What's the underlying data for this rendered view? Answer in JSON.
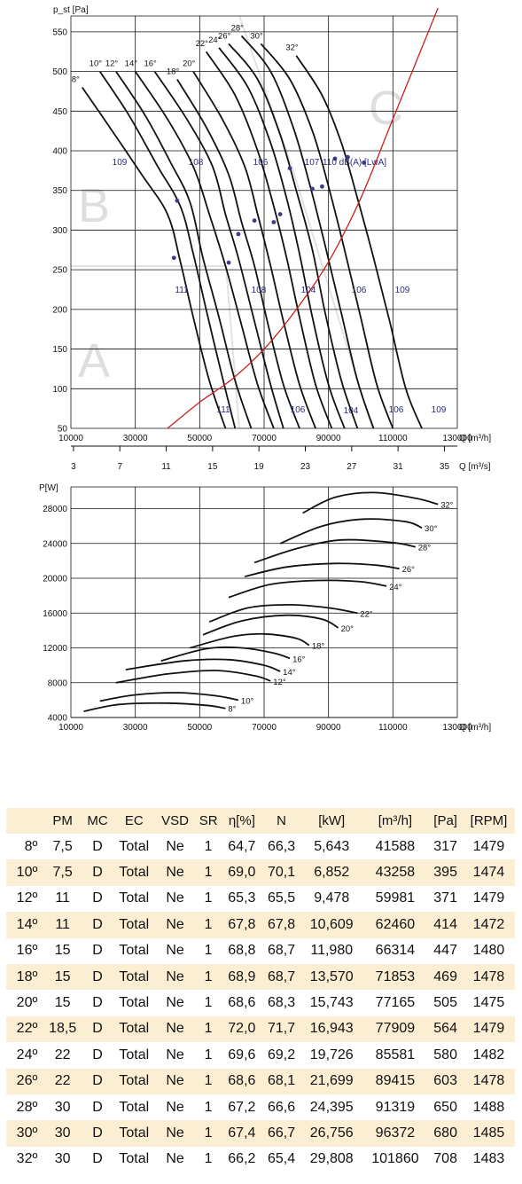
{
  "chart_data": [
    {
      "type": "line",
      "title": "",
      "ylabel": "p_st [Pa]",
      "xlabel": "Q [m³/h]",
      "xlabel2": "Q [m³/s]",
      "xlim": [
        10000,
        130000
      ],
      "ylim": [
        50,
        570
      ],
      "xticks": [
        "10000",
        "30000",
        "50000",
        "70000",
        "90000",
        "110000",
        "130000"
      ],
      "yticks": [
        "50",
        "100",
        "150",
        "200",
        "250",
        "300",
        "350",
        "400",
        "450",
        "500",
        "550"
      ],
      "x2ticks": [
        "3",
        "7",
        "11",
        "15",
        "19",
        "23",
        "27",
        "31",
        "35"
      ],
      "zones": [
        "A",
        "B",
        "C"
      ],
      "series": [
        {
          "name": "8°",
          "x": [
            13500,
            22000,
            32000,
            40000,
            44000,
            48000,
            53000,
            58000
          ],
          "y": [
            480,
            430,
            370,
            320,
            260,
            190,
            110,
            50
          ]
        },
        {
          "name": "10°",
          "x": [
            19000,
            28000,
            37000,
            44000,
            48000,
            52000,
            57000,
            61000
          ],
          "y": [
            500,
            445,
            380,
            330,
            270,
            200,
            115,
            50
          ]
        },
        {
          "name": "12°",
          "x": [
            24000,
            33000,
            41000,
            47000,
            51000,
            56000,
            61000,
            66000
          ],
          "y": [
            500,
            445,
            385,
            335,
            265,
            190,
            110,
            50
          ]
        },
        {
          "name": "14°",
          "x": [
            30000,
            40000,
            48000,
            53000,
            58000,
            63000,
            68000,
            73000
          ],
          "y": [
            500,
            440,
            380,
            320,
            255,
            180,
            105,
            50
          ]
        },
        {
          "name": "16°",
          "x": [
            36000,
            46000,
            54000,
            58000,
            62000,
            67000,
            72000,
            76000
          ],
          "y": [
            500,
            440,
            380,
            320,
            265,
            185,
            105,
            50
          ]
        },
        {
          "name": "18°",
          "x": [
            43000,
            52000,
            59000,
            63000,
            67000,
            71000,
            76000,
            81000
          ],
          "y": [
            490,
            430,
            370,
            310,
            255,
            185,
            105,
            50
          ]
        },
        {
          "name": "20°",
          "x": [
            48000,
            57000,
            64000,
            68000,
            72000,
            76000,
            81000,
            86000
          ],
          "y": [
            500,
            440,
            380,
            320,
            255,
            185,
            105,
            50
          ]
        },
        {
          "name": "22°",
          "x": [
            52000,
            61000,
            68000,
            73000,
            77000,
            81000,
            86000,
            91000
          ],
          "y": [
            525,
            470,
            400,
            330,
            265,
            190,
            105,
            50
          ]
        },
        {
          "name": "24°",
          "x": [
            56000,
            65000,
            72000,
            77000,
            81000,
            85000,
            90000,
            95000
          ],
          "y": [
            530,
            480,
            410,
            340,
            270,
            190,
            105,
            50
          ]
        },
        {
          "name": "26°",
          "x": [
            59000,
            68000,
            75000,
            80000,
            85000,
            89000,
            94000,
            99000
          ],
          "y": [
            535,
            490,
            420,
            350,
            275,
            195,
            110,
            50
          ]
        },
        {
          "name": "28°",
          "x": [
            63000,
            72000,
            79000,
            84000,
            89000,
            94000,
            99000,
            104000
          ],
          "y": [
            545,
            500,
            430,
            360,
            280,
            195,
            110,
            50
          ]
        },
        {
          "name": "30°",
          "x": [
            69000,
            78000,
            85000,
            90000,
            95000,
            100000,
            105000,
            110000
          ],
          "y": [
            535,
            490,
            425,
            355,
            275,
            190,
            105,
            50
          ]
        },
        {
          "name": "32°",
          "x": [
            80000,
            88000,
            94000,
            99000,
            104000,
            109000,
            114000,
            119000
          ],
          "y": [
            520,
            470,
            410,
            340,
            265,
            185,
            100,
            50
          ]
        },
        {
          "name": "System",
          "x": [
            40000,
            50000,
            60000,
            70000,
            80000,
            90000,
            100000,
            110000,
            124000
          ],
          "y": [
            50,
            83,
            112,
            150,
            200,
            260,
            340,
            440,
            580
          ]
        }
      ],
      "annotations_db_upper": [
        "109",
        "108",
        "106",
        "107",
        "110 dB(A) [LwA]"
      ],
      "annotations_db_mid": [
        "111",
        "108",
        "104",
        "106",
        "109"
      ],
      "annotations_db_low": [
        "111",
        "106",
        "104",
        "106",
        "109"
      ],
      "operating_points": [
        {
          "x": 42000,
          "y": 265
        },
        {
          "x": 43000,
          "y": 337
        },
        {
          "x": 59000,
          "y": 259
        },
        {
          "x": 62000,
          "y": 295
        },
        {
          "x": 67000,
          "y": 312
        },
        {
          "x": 73000,
          "y": 310
        },
        {
          "x": 75000,
          "y": 320
        },
        {
          "x": 78000,
          "y": 378
        },
        {
          "x": 85000,
          "y": 352
        },
        {
          "x": 88000,
          "y": 355
        },
        {
          "x": 92000,
          "y": 390
        },
        {
          "x": 96000,
          "y": 392
        },
        {
          "x": 101000,
          "y": 385
        }
      ],
      "curve_labels": [
        "8°",
        "10°",
        "12°",
        "14°",
        "16°",
        "18°",
        "20°",
        "22°",
        "24°",
        "26°",
        "28°",
        "30°",
        "32°"
      ],
      "colors": {
        "curve": "#111111",
        "system": "#c8201c",
        "grid": "#111111",
        "point": "#3b3b8a",
        "db": "#2a2a7a"
      }
    },
    {
      "type": "line",
      "title": "",
      "ylabel": "P[W]",
      "xlabel": "Q [m³/h]",
      "xlim": [
        10000,
        130000
      ],
      "ylim": [
        4000,
        30500
      ],
      "xticks": [
        "10000",
        "30000",
        "50000",
        "70000",
        "90000",
        "110000",
        "130000"
      ],
      "yticks": [
        "4000",
        "8000",
        "12000",
        "16000",
        "20000",
        "24000",
        "28000"
      ],
      "series": [
        {
          "name": "8°",
          "x": [
            14000,
            25000,
            40000,
            52000,
            58000
          ],
          "y": [
            4700,
            5500,
            5650,
            5400,
            5050
          ]
        },
        {
          "name": "10°",
          "x": [
            19000,
            30000,
            43000,
            55000,
            62000
          ],
          "y": [
            5900,
            6600,
            6850,
            6500,
            6000
          ]
        },
        {
          "name": "12°",
          "x": [
            24000,
            40000,
            55000,
            67000,
            72000
          ],
          "y": [
            8000,
            9000,
            9400,
            8800,
            8200
          ]
        },
        {
          "name": "14°",
          "x": [
            27000,
            45000,
            59000,
            70000,
            75000
          ],
          "y": [
            9500,
            10500,
            10650,
            10000,
            9300
          ]
        },
        {
          "name": "16°",
          "x": [
            38000,
            52000,
            63000,
            73000,
            78000
          ],
          "y": [
            10500,
            11900,
            12000,
            11400,
            10800
          ]
        },
        {
          "name": "18°",
          "x": [
            47000,
            60000,
            70000,
            80000,
            84000
          ],
          "y": [
            12000,
            13300,
            13600,
            13100,
            12300
          ]
        },
        {
          "name": "20°",
          "x": [
            51000,
            63000,
            77000,
            88000,
            93000
          ],
          "y": [
            13500,
            15100,
            15750,
            15300,
            14300
          ]
        },
        {
          "name": "22°",
          "x": [
            53000,
            65000,
            78000,
            90000,
            99000
          ],
          "y": [
            15000,
            16600,
            16950,
            16600,
            16000
          ]
        },
        {
          "name": "24°",
          "x": [
            59000,
            72000,
            87000,
            100000,
            108000
          ],
          "y": [
            17800,
            19300,
            19750,
            19600,
            19100
          ]
        },
        {
          "name": "26°",
          "x": [
            64000,
            77000,
            92000,
            105000,
            112000
          ],
          "y": [
            20200,
            21300,
            21700,
            21500,
            21100
          ]
        },
        {
          "name": "28°",
          "x": [
            67000,
            80000,
            94000,
            110000,
            117000
          ],
          "y": [
            21800,
            23400,
            24400,
            24100,
            23600
          ]
        },
        {
          "name": "30°",
          "x": [
            75000,
            88000,
            101000,
            114000,
            119000
          ],
          "y": [
            24000,
            26000,
            26800,
            26500,
            25800
          ]
        },
        {
          "name": "32°",
          "x": [
            82000,
            92000,
            104000,
            117000,
            124000
          ],
          "y": [
            27500,
            29300,
            29850,
            29200,
            28500
          ]
        }
      ],
      "colors": {
        "curve": "#111111",
        "grid": "#111111"
      }
    }
  ],
  "table": {
    "headers": [
      "",
      "PM",
      "MC",
      "EC",
      "VSD",
      "SR",
      "η[%]",
      "N",
      "[kW]",
      "[m³/h]",
      "[Pa]",
      "[RPM]"
    ],
    "rows": [
      [
        "8º",
        "7,5",
        "D",
        "Total",
        "Ne",
        "1",
        "64,7",
        "66,3",
        "5,643",
        "41588",
        "317",
        "1479"
      ],
      [
        "10º",
        "7,5",
        "D",
        "Total",
        "Ne",
        "1",
        "69,0",
        "70,1",
        "6,852",
        "43258",
        "395",
        "1474"
      ],
      [
        "12º",
        "11",
        "D",
        "Total",
        "Ne",
        "1",
        "65,3",
        "65,5",
        "9,478",
        "59981",
        "371",
        "1479"
      ],
      [
        "14º",
        "11",
        "D",
        "Total",
        "Ne",
        "1",
        "67,8",
        "67,8",
        "10,609",
        "62460",
        "414",
        "1472"
      ],
      [
        "16º",
        "15",
        "D",
        "Total",
        "Ne",
        "1",
        "68,8",
        "68,7",
        "11,980",
        "66314",
        "447",
        "1480"
      ],
      [
        "18º",
        "15",
        "D",
        "Total",
        "Ne",
        "1",
        "68,9",
        "68,7",
        "13,570",
        "71853",
        "469",
        "1478"
      ],
      [
        "20º",
        "15",
        "D",
        "Total",
        "Ne",
        "1",
        "68,6",
        "68,3",
        "15,743",
        "77165",
        "505",
        "1475"
      ],
      [
        "22º",
        "18,5",
        "D",
        "Total",
        "Ne",
        "1",
        "72,0",
        "71,7",
        "16,943",
        "77909",
        "564",
        "1479"
      ],
      [
        "24º",
        "22",
        "D",
        "Total",
        "Ne",
        "1",
        "69,6",
        "69,2",
        "19,726",
        "85581",
        "580",
        "1482"
      ],
      [
        "26º",
        "22",
        "D",
        "Total",
        "Ne",
        "1",
        "68,6",
        "68,1",
        "21,699",
        "89415",
        "603",
        "1478"
      ],
      [
        "28º",
        "30",
        "D",
        "Total",
        "Ne",
        "1",
        "67,2",
        "66,6",
        "24,395",
        "91319",
        "650",
        "1488"
      ],
      [
        "30º",
        "30",
        "D",
        "Total",
        "Ne",
        "1",
        "67,4",
        "66,7",
        "26,756",
        "96372",
        "680",
        "1485"
      ],
      [
        "32º",
        "30",
        "D",
        "Total",
        "Ne",
        "1",
        "66,2",
        "65,4",
        "29,808",
        "101860",
        "708",
        "1483"
      ]
    ]
  }
}
